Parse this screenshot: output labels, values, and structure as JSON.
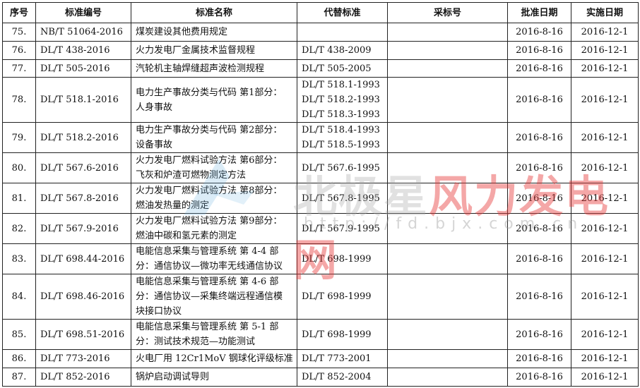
{
  "headers": [
    "序号",
    "标准编号",
    "标准名称",
    "代替标准",
    "采标号",
    "批准日期",
    "实施日期"
  ],
  "rows": [
    {
      "seq": "75.",
      "code": "NB/T 51064-2016",
      "name": [
        "煤炭建设其他费用规定"
      ],
      "replaces": [],
      "adopt": "",
      "approve": "2016-8-16",
      "effective": "2016-12-1"
    },
    {
      "seq": "76.",
      "code": "DL/T 438-2016",
      "name": [
        "火力发电厂金属技术监督规程"
      ],
      "replaces": [
        "DL/T 438-2009"
      ],
      "adopt": "",
      "approve": "2016-8-16",
      "effective": "2016-12-1"
    },
    {
      "seq": "77.",
      "code": "DL/T 505-2016",
      "name": [
        "汽轮机主轴焊缝超声波检测规程"
      ],
      "replaces": [
        "DL/T 505-2005"
      ],
      "adopt": "",
      "approve": "2016-8-16",
      "effective": "2016-12-1"
    },
    {
      "seq": "78.",
      "code": "DL/T 518.1-2016",
      "name": [
        "电力生产事故分类与代码 第1部分：",
        "人身事故"
      ],
      "replaces": [
        "DL/T 518.1-1993",
        "DL/T 518.2-1993",
        "DL/T 518.3-1993"
      ],
      "adopt": "",
      "approve": "2016-8-16",
      "effective": "2016-12-1"
    },
    {
      "seq": "79.",
      "code": "DL/T 518.2-2016",
      "name": [
        "电力生产事故分类与代码 第2部分：",
        "设备事故"
      ],
      "replaces": [
        "DL/T 518.4-1993",
        "DL/T 518.5-1993"
      ],
      "adopt": "",
      "approve": "2016-8-16",
      "effective": "2016-12-1"
    },
    {
      "seq": "80.",
      "code": "DL/T 567.6-2016",
      "name": [
        "火力发电厂燃料试验方法 第6部分：",
        "飞灰和炉渣可燃物测定方法"
      ],
      "replaces": [
        "DL/T 567.6-1995"
      ],
      "adopt": "",
      "approve": "2016-8-16",
      "effective": "2016-12-1"
    },
    {
      "seq": "81.",
      "code": "DL/T 567.8-2016",
      "name": [
        "火力发电厂燃料试验方法 第8部分：",
        "燃油发热量的测定"
      ],
      "replaces": [
        "DL/T 567.8-1995"
      ],
      "adopt": "",
      "approve": "2016-8-16",
      "effective": "2016-12-1"
    },
    {
      "seq": "82.",
      "code": "DL/T 567.9-2016",
      "name": [
        "火力发电厂燃料试验方法 第9部分：",
        "燃油中碳和氢元素的测定"
      ],
      "replaces": [
        "DL/T 567.9-1995"
      ],
      "adopt": "",
      "approve": "2016-8-16",
      "effective": "2016-12-1"
    },
    {
      "seq": "83.",
      "code": "DL/T 698.44-2016",
      "name": [
        "电能信息采集与管理系统 第 4-4 部",
        "分：通信协议—微功率无线通信协议"
      ],
      "replaces": [
        "DL/T 698-1999"
      ],
      "adopt": "",
      "approve": "2016-8-16",
      "effective": "2016-12-1"
    },
    {
      "seq": "84.",
      "code": "DL/T 698.46-2016",
      "name": [
        "电能信息采集与管理系统 第 4-6 部",
        "分：通信协议—采集终端远程通信模",
        "块接口协议"
      ],
      "replaces": [
        "DL/T 698-1999"
      ],
      "adopt": "",
      "approve": "2016-8-16",
      "effective": "2016-12-1"
    },
    {
      "seq": "85.",
      "code": "DL/T 698.51-2016",
      "name": [
        "电能信息采集与管理系统 第 5-1 部",
        "分：测试技术规范—功能测试"
      ],
      "replaces": [
        "DL/T 698-1999"
      ],
      "adopt": "",
      "approve": "2016-8-16",
      "effective": "2016-12-1"
    },
    {
      "seq": "86.",
      "code": "DL/T 773-2016",
      "name": [
        "火电厂用 12Cr1MoV 钢球化评级标准"
      ],
      "replaces": [
        "DL/T 773-2001"
      ],
      "adopt": "",
      "approve": "2016-8-16",
      "effective": "2016-12-1"
    },
    {
      "seq": "87.",
      "code": "DL/T 852-2016",
      "name": [
        "锅炉启动调试导则"
      ],
      "replaces": [
        "DL/T 852-2004"
      ],
      "adopt": "",
      "approve": "2016-8-16",
      "effective": "2016-12-1"
    }
  ],
  "watermark": {
    "brand_gray": "北极星",
    "brand_red": "风力发电网",
    "url": "http://fd.bjx.com.cn",
    "red": "#e63c3c",
    "logo_blue": "#6fb3e0"
  }
}
